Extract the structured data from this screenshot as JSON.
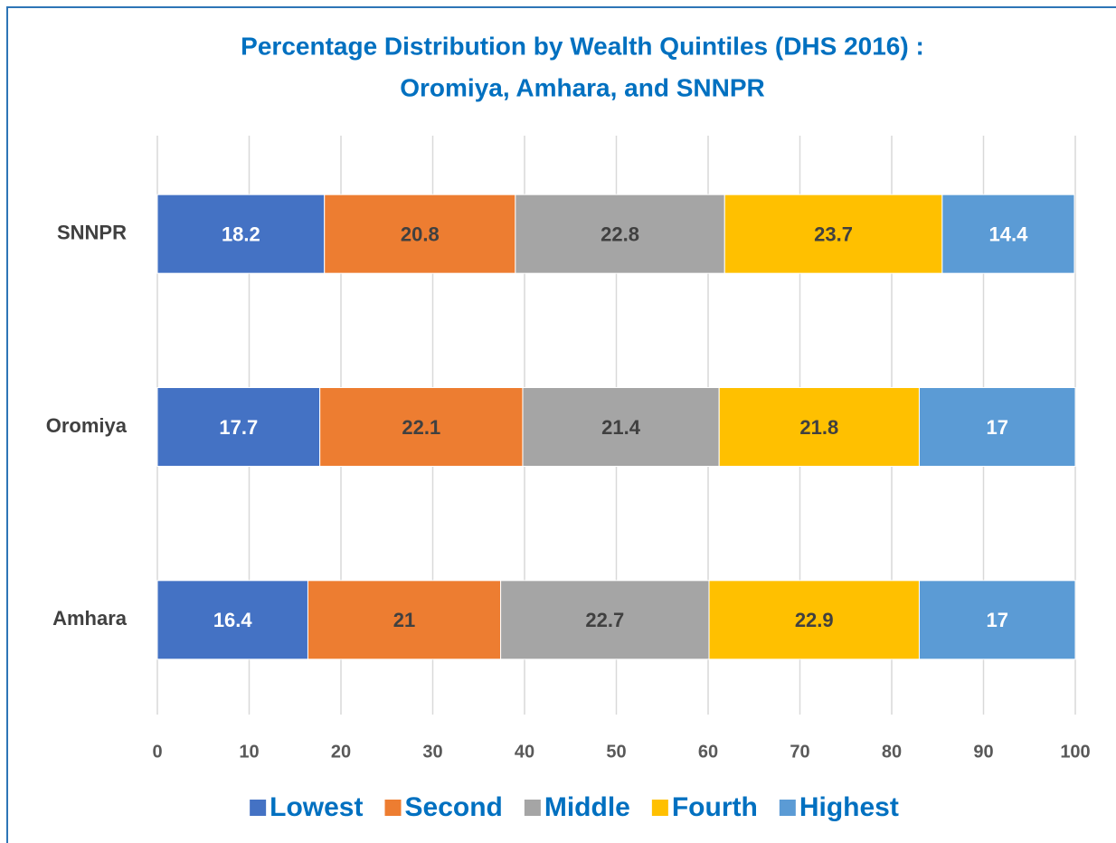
{
  "chart_data": {
    "type": "stacked-bar-horizontal",
    "title": [
      "Percentage Distribution by Wealth Quintiles (DHS 2016) :",
      "Oromiya, Amhara, and SNNPR"
    ],
    "categories": [
      "SNNPR",
      "Oromiya",
      "Amhara"
    ],
    "series": [
      {
        "name": "Lowest",
        "color": "#4472c4",
        "label_color": "#ffffff",
        "values": [
          18.2,
          17.7,
          16.4
        ]
      },
      {
        "name": "Second",
        "color": "#ed7d31",
        "label_color": "#404040",
        "values": [
          20.8,
          22.1,
          21
        ]
      },
      {
        "name": "Middle",
        "color": "#a5a5a5",
        "label_color": "#404040",
        "values": [
          22.8,
          21.4,
          22.7
        ]
      },
      {
        "name": "Fourth",
        "color": "#ffc000",
        "label_color": "#404040",
        "values": [
          23.7,
          21.8,
          22.9
        ]
      },
      {
        "name": "Highest",
        "color": "#5b9bd5",
        "label_color": "#ffffff",
        "values": [
          14.4,
          17,
          17
        ]
      }
    ],
    "xlim": [
      0,
      100
    ],
    "xticks": [
      0,
      10,
      20,
      30,
      40,
      50,
      60,
      70,
      80,
      90,
      100
    ],
    "grid": true,
    "legend": "bottom"
  }
}
